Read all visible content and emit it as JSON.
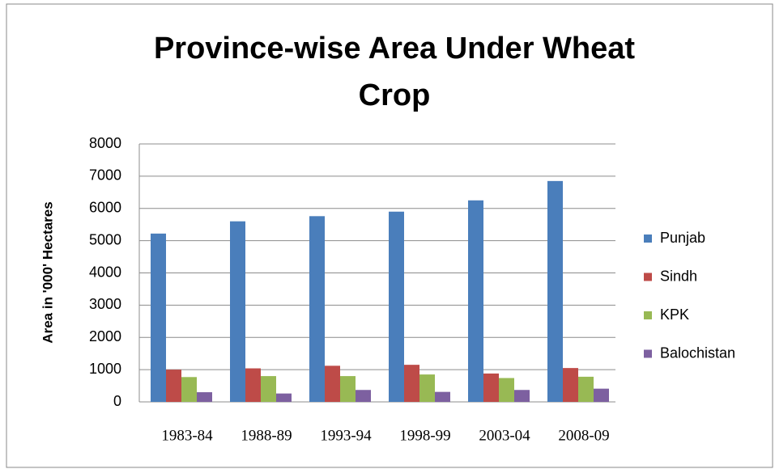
{
  "chart_data": {
    "type": "bar",
    "title": "Province-wise Area Under Wheat Crop",
    "y_label": "Area in '000' Hectares",
    "categories": [
      "1983-84",
      "1988-89",
      "1993-94",
      "1998-99",
      "2003-04",
      "2008-09"
    ],
    "series": [
      {
        "name": "Punjab",
        "color": "#4a7ebb",
        "values": [
          5220,
          5600,
          5760,
          5900,
          6250,
          6850
        ]
      },
      {
        "name": "Sindh",
        "color": "#be4b48",
        "values": [
          1000,
          1040,
          1120,
          1150,
          880,
          1050
        ]
      },
      {
        "name": "KPK",
        "color": "#98b954",
        "values": [
          770,
          800,
          800,
          850,
          740,
          780
        ]
      },
      {
        "name": "Balochistan",
        "color": "#7d60a0",
        "values": [
          300,
          260,
          370,
          310,
          370,
          410
        ]
      }
    ],
    "ylim": [
      0,
      8000
    ],
    "yticks": [
      0,
      1000,
      2000,
      3000,
      4000,
      5000,
      6000,
      7000,
      8000
    ],
    "grid": true,
    "legend": "right"
  }
}
